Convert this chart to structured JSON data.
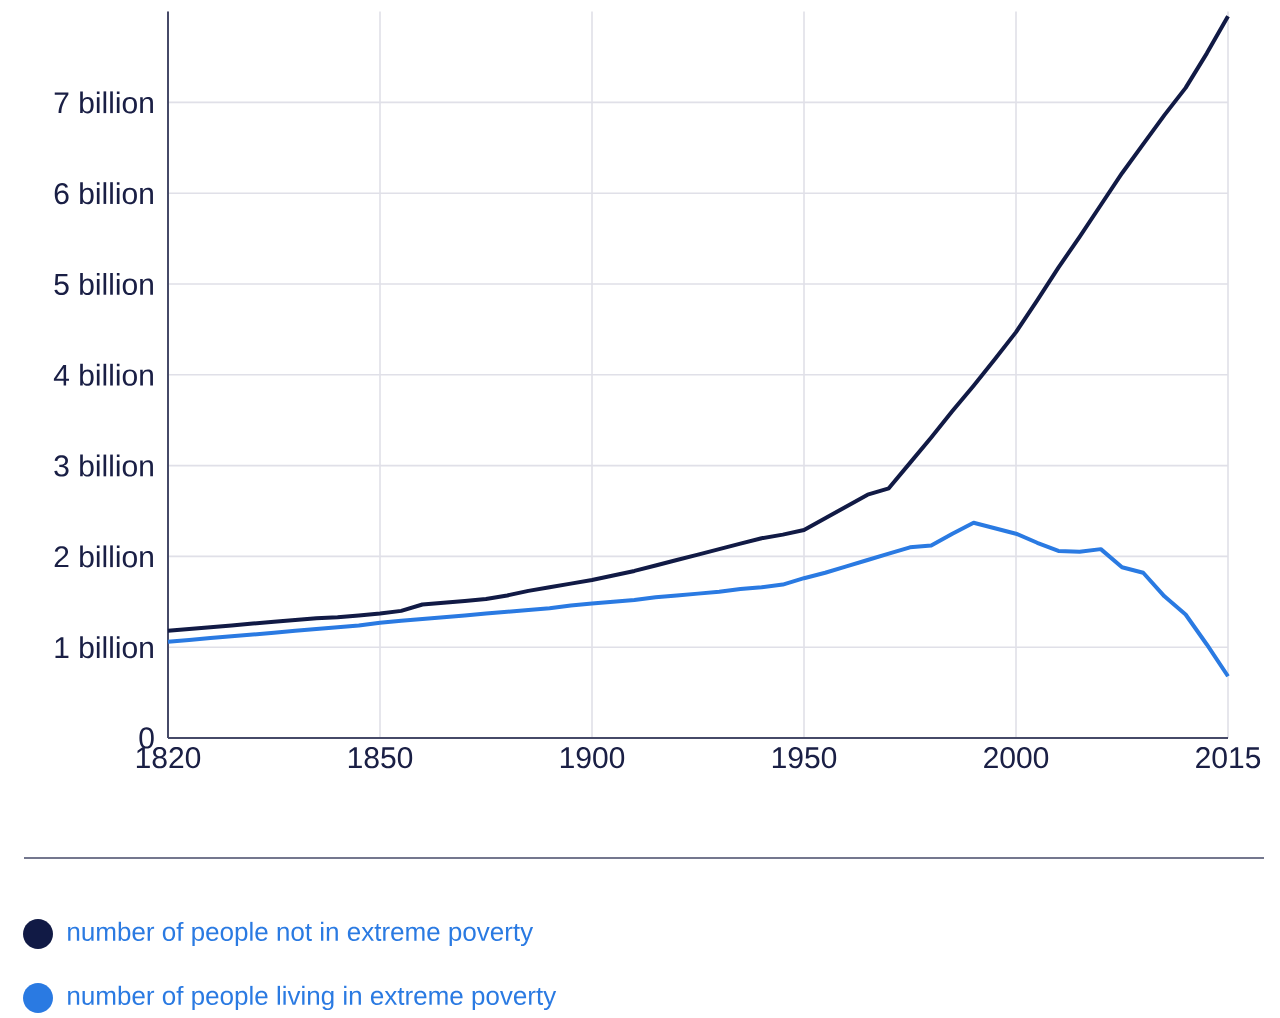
{
  "chart_data": {
    "type": "line",
    "categories": [
      "1820",
      null,
      null,
      null,
      null,
      null,
      null,
      null,
      null,
      null,
      "1850",
      null,
      null,
      null,
      null,
      null,
      null,
      null,
      null,
      null,
      "1900",
      null,
      null,
      null,
      null,
      null,
      null,
      null,
      null,
      null,
      "1950",
      null,
      null,
      null,
      null,
      null,
      null,
      null,
      null,
      null,
      "2000",
      null,
      null,
      null,
      null,
      null,
      null,
      null,
      null,
      null,
      "2015"
    ],
    "series": [
      {
        "name": "number of people not in extreme poverty",
        "color": "#111a45",
        "values": [
          1.18,
          1.2,
          1.22,
          1.24,
          1.26,
          1.28,
          1.3,
          1.32,
          1.33,
          1.35,
          1.37,
          1.4,
          1.47,
          1.49,
          1.51,
          1.53,
          1.57,
          1.62,
          1.66,
          1.7,
          1.74,
          1.79,
          1.84,
          1.9,
          1.96,
          2.02,
          2.08,
          2.14,
          2.2,
          2.24,
          2.29,
          2.42,
          2.55,
          2.68,
          2.75,
          3.03,
          3.31,
          3.6,
          3.88,
          4.17,
          4.47,
          4.82,
          5.18,
          5.52,
          5.87,
          6.22,
          6.54,
          6.86,
          7.16,
          7.54,
          7.95
        ]
      },
      {
        "name": "number of people living in extreme poverty",
        "color": "#2a7ae2",
        "values": [
          1.06,
          1.08,
          1.1,
          1.12,
          1.14,
          1.16,
          1.18,
          1.2,
          1.22,
          1.24,
          1.27,
          1.29,
          1.31,
          1.33,
          1.35,
          1.37,
          1.39,
          1.41,
          1.43,
          1.46,
          1.48,
          1.5,
          1.52,
          1.55,
          1.57,
          1.59,
          1.61,
          1.64,
          1.66,
          1.69,
          1.76,
          1.82,
          1.89,
          1.96,
          2.03,
          2.1,
          2.12,
          2.25,
          2.37,
          2.31,
          2.25,
          2.15,
          2.06,
          2.05,
          2.08,
          1.88,
          1.82,
          1.56,
          1.36,
          1.03,
          0.68
        ]
      }
    ],
    "ylim": [
      0,
      8
    ],
    "yticks": [
      {
        "value": 0,
        "label": "0"
      },
      {
        "value": 1,
        "label": "1 billion"
      },
      {
        "value": 2,
        "label": "2 billion"
      },
      {
        "value": 3,
        "label": "3 billion"
      },
      {
        "value": 4,
        "label": "4 billion"
      },
      {
        "value": 5,
        "label": "5 billion"
      },
      {
        "value": 6,
        "label": "6 billion"
      },
      {
        "value": 7,
        "label": "7 billion"
      }
    ],
    "grid": true,
    "legend": "bottom",
    "marker": "none",
    "line_style": "solid"
  }
}
